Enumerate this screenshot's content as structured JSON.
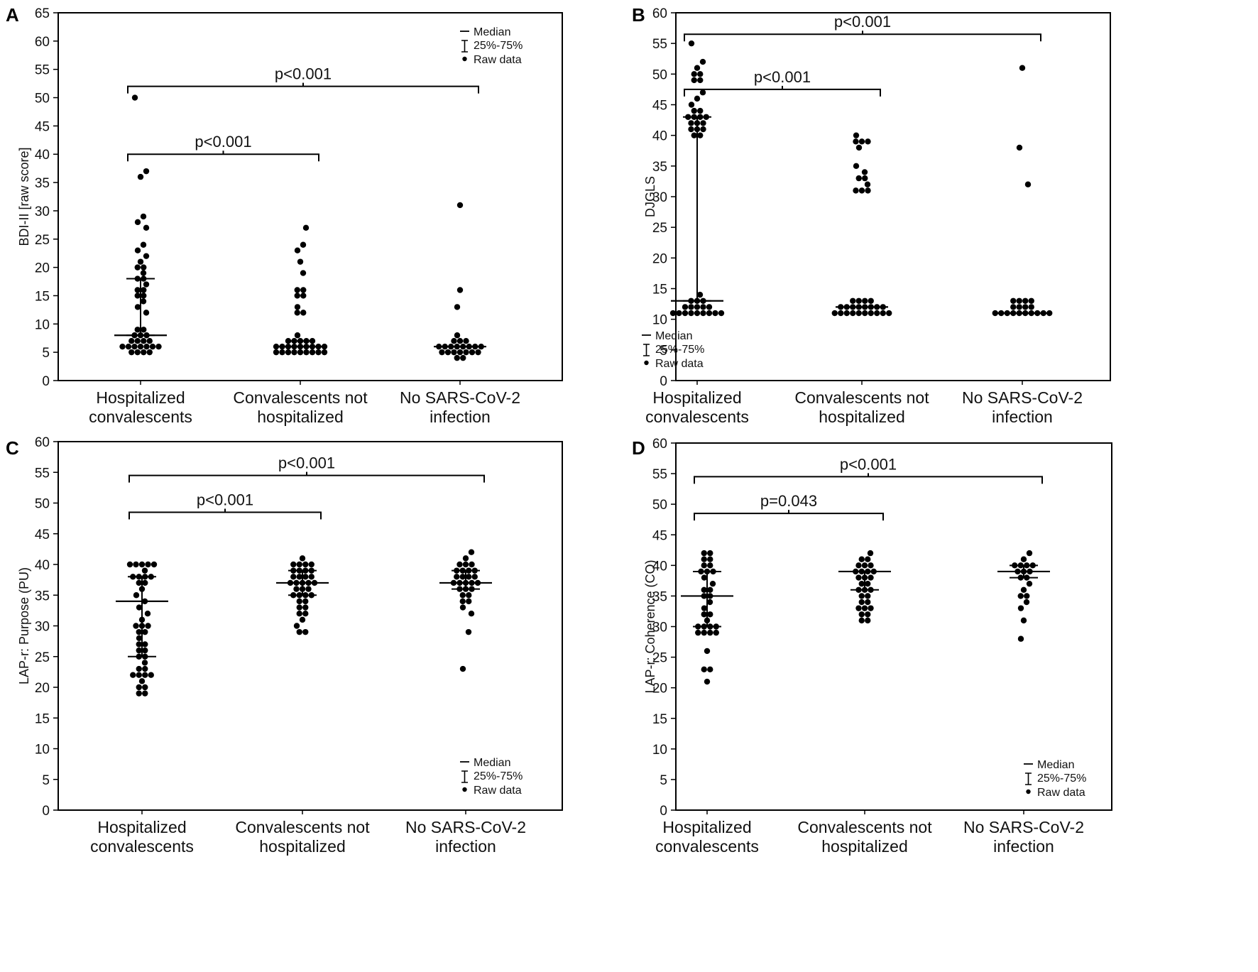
{
  "legend": {
    "median": "Median",
    "iqr": "25%-75%",
    "raw": "Raw data"
  },
  "colors": {
    "ink": "#000000",
    "background": "#ffffff"
  },
  "chart_data": [
    {
      "panel": "A",
      "type": "scatter",
      "ylabel": "BDI-II [raw score]",
      "ylim": [
        0,
        65
      ],
      "yticks": [
        0,
        5,
        10,
        15,
        20,
        25,
        30,
        35,
        40,
        45,
        50,
        55,
        60,
        65
      ],
      "categories": [
        [
          "Hospitalized",
          "convalescents"
        ],
        [
          "Convalescents not",
          "hospitalized"
        ],
        [
          "No SARS-CoV-2",
          "infection"
        ]
      ],
      "legend_position": "top-right",
      "groups": [
        {
          "median": 8,
          "q1": 8,
          "q3": 18,
          "raw": [
            50,
            37,
            36,
            29,
            28,
            27,
            24,
            23,
            22,
            21,
            20,
            20,
            19,
            18,
            18,
            17,
            16,
            16,
            15,
            15,
            14,
            13,
            12,
            9,
            9,
            8,
            8,
            8,
            7,
            7,
            7,
            7,
            6,
            6,
            6,
            6,
            6,
            6,
            6,
            5,
            5,
            5,
            5
          ]
        },
        {
          "median": 6,
          "q1": 6,
          "q3": 7,
          "raw": [
            27,
            24,
            23,
            21,
            19,
            16,
            16,
            15,
            15,
            13,
            12,
            12,
            8,
            7,
            7,
            7,
            7,
            7,
            6,
            6,
            6,
            6,
            6,
            6,
            6,
            6,
            6,
            5,
            5,
            5,
            5,
            5,
            5,
            5,
            5,
            5
          ]
        },
        {
          "median": 6,
          "q1": 6,
          "q3": 6,
          "raw": [
            31,
            16,
            13,
            8,
            7,
            7,
            7,
            6,
            6,
            6,
            6,
            6,
            6,
            6,
            6,
            5,
            5,
            5,
            5,
            5,
            5,
            5,
            4,
            4
          ]
        }
      ],
      "comparisons": [
        {
          "groups": [
            0,
            2
          ],
          "text": "p<0.001",
          "y": 52
        },
        {
          "groups": [
            0,
            1
          ],
          "text": "p<0.001",
          "y": 40
        }
      ]
    },
    {
      "panel": "B",
      "type": "scatter",
      "ylabel": "DJGLS",
      "ylim": [
        0,
        60
      ],
      "yticks": [
        0,
        5,
        10,
        15,
        20,
        25,
        30,
        35,
        40,
        45,
        50,
        55,
        60
      ],
      "categories": [
        [
          "Hospitalized",
          "convalescents"
        ],
        [
          "Convalescents not",
          "hospitalized"
        ],
        [
          "No SARS-CoV-2",
          "infection"
        ]
      ],
      "legend_position": "bottom-left",
      "groups": [
        {
          "median": 13,
          "q1": 13,
          "q3": 43,
          "raw": [
            55,
            52,
            51,
            50,
            50,
            49,
            49,
            47,
            46,
            45,
            44,
            44,
            43,
            43,
            43,
            43,
            42,
            42,
            42,
            41,
            41,
            41,
            40,
            40,
            14,
            13,
            13,
            13,
            12,
            12,
            12,
            12,
            12,
            11,
            11,
            11,
            11,
            11,
            11,
            11,
            11,
            11
          ]
        },
        {
          "median": 12,
          "q1": 12,
          "q3": 12,
          "raw": [
            40,
            39,
            39,
            39,
            38,
            35,
            34,
            33,
            33,
            32,
            31,
            31,
            31,
            13,
            13,
            13,
            13,
            12,
            12,
            12,
            12,
            12,
            12,
            12,
            12,
            11,
            11,
            11,
            11,
            11,
            11,
            11,
            11,
            11,
            11
          ]
        },
        {
          "median": 11,
          "q1": 11,
          "q3": 11,
          "raw": [
            51,
            38,
            32,
            13,
            13,
            13,
            13,
            12,
            12,
            12,
            12,
            11,
            11,
            11,
            11,
            11,
            11,
            11,
            11,
            11,
            11
          ]
        }
      ],
      "comparisons": [
        {
          "groups": [
            0,
            2
          ],
          "text": "p<0.001",
          "y": 56.5
        },
        {
          "groups": [
            0,
            1
          ],
          "text": "p<0.001",
          "y": 47.5
        }
      ]
    },
    {
      "panel": "C",
      "type": "scatter",
      "ylabel": "LAP-r: Purpose (PU)",
      "ylim": [
        0,
        60
      ],
      "yticks": [
        0,
        5,
        10,
        15,
        20,
        25,
        30,
        35,
        40,
        45,
        50,
        55,
        60
      ],
      "categories": [
        [
          "Hospitalized",
          "convalescents"
        ],
        [
          "Convalescents not",
          "hospitalized"
        ],
        [
          "No SARS-CoV-2",
          "infection"
        ]
      ],
      "legend_position": "bottom-right",
      "groups": [
        {
          "median": 34,
          "q1": 25,
          "q3": 38,
          "raw": [
            40,
            40,
            40,
            40,
            40,
            39,
            38,
            38,
            38,
            38,
            37,
            37,
            36,
            35,
            34,
            33,
            32,
            31,
            30,
            30,
            30,
            29,
            29,
            28,
            27,
            27,
            26,
            26,
            25,
            25,
            24,
            23,
            23,
            22,
            22,
            22,
            22,
            21,
            20,
            20,
            19,
            19
          ]
        },
        {
          "median": 37,
          "q1": 35,
          "q3": 39,
          "raw": [
            41,
            40,
            40,
            40,
            40,
            39,
            39,
            39,
            39,
            38,
            38,
            38,
            38,
            37,
            37,
            37,
            37,
            37,
            36,
            36,
            36,
            35,
            35,
            35,
            35,
            34,
            34,
            33,
            33,
            32,
            32,
            31,
            30,
            29,
            29
          ]
        },
        {
          "median": 37,
          "q1": 36,
          "q3": 39,
          "raw": [
            42,
            41,
            40,
            40,
            40,
            39,
            39,
            39,
            39,
            38,
            38,
            38,
            38,
            37,
            37,
            37,
            37,
            37,
            36,
            36,
            36,
            35,
            35,
            34,
            34,
            33,
            32,
            29,
            23
          ]
        }
      ],
      "comparisons": [
        {
          "groups": [
            0,
            2
          ],
          "text": "p<0.001",
          "y": 54.5
        },
        {
          "groups": [
            0,
            1
          ],
          "text": "p<0.001",
          "y": 48.5
        }
      ]
    },
    {
      "panel": "D",
      "type": "scatter",
      "ylabel": "LAP-r: Coherence (CO)",
      "ylim": [
        0,
        60
      ],
      "yticks": [
        0,
        5,
        10,
        15,
        20,
        25,
        30,
        35,
        40,
        45,
        50,
        55,
        60
      ],
      "categories": [
        [
          "Hospitalized",
          "convalescents"
        ],
        [
          "Convalescents not",
          "hospitalized"
        ],
        [
          "No SARS-CoV-2",
          "infection"
        ]
      ],
      "legend_position": "bottom-right",
      "groups": [
        {
          "median": 35,
          "q1": 30,
          "q3": 39,
          "raw": [
            42,
            42,
            41,
            41,
            40,
            40,
            39,
            39,
            39,
            38,
            37,
            36,
            36,
            35,
            35,
            34,
            33,
            32,
            32,
            31,
            30,
            30,
            30,
            30,
            29,
            29,
            29,
            29,
            26,
            23,
            23,
            21
          ]
        },
        {
          "median": 39,
          "q1": 36,
          "q3": 39,
          "raw": [
            42,
            41,
            41,
            40,
            40,
            40,
            39,
            39,
            39,
            39,
            38,
            38,
            38,
            37,
            37,
            36,
            36,
            36,
            35,
            35,
            34,
            34,
            33,
            33,
            33,
            32,
            32,
            31,
            31
          ]
        },
        {
          "median": 39,
          "q1": 38,
          "q3": 40,
          "raw": [
            42,
            41,
            40,
            40,
            40,
            40,
            39,
            39,
            39,
            38,
            38,
            37,
            36,
            35,
            35,
            34,
            33,
            31,
            28
          ]
        }
      ],
      "comparisons": [
        {
          "groups": [
            0,
            2
          ],
          "text": "p<0.001",
          "y": 54.5
        },
        {
          "groups": [
            0,
            1
          ],
          "text": "p=0.043",
          "y": 48.5
        }
      ]
    }
  ]
}
